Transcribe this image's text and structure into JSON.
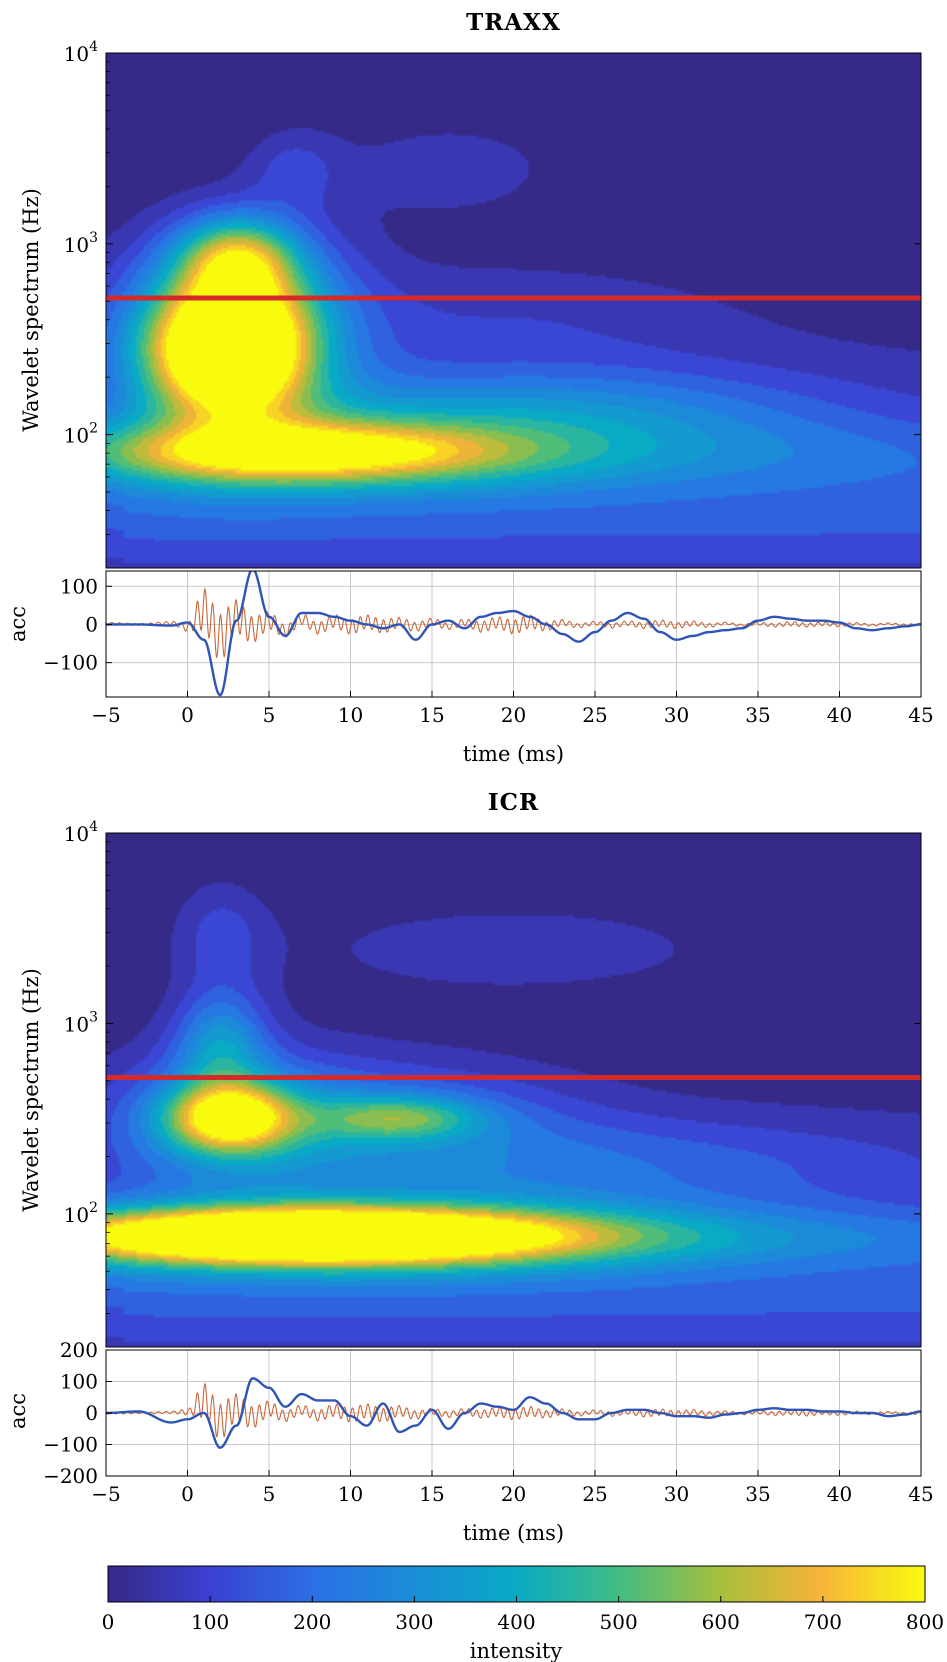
{
  "chart_data": [
    {
      "type": "heatmap",
      "title": "TRAXX",
      "ylabel": "Wavelet spectrum (Hz)",
      "yscale": "log",
      "ylim": [
        20,
        10000
      ],
      "xlim": [
        -5,
        45
      ],
      "ytick_labels": [
        {
          "base": "10",
          "exp": "2",
          "value": 100
        },
        {
          "base": "10",
          "exp": "3",
          "value": 1000
        },
        {
          "base": "10",
          "exp": "4",
          "value": 10000
        }
      ],
      "reference_line_hz": 520,
      "reference_line_color": "#d42a2a",
      "colormap": "parula",
      "blobs": [
        {
          "t": 2.5,
          "f": 280,
          "ts": 3.2,
          "fs": 0.22,
          "v": 820
        },
        {
          "t": 2.5,
          "f": 280,
          "ts": 5.0,
          "fs": 0.36,
          "v": 420
        },
        {
          "t": 3.0,
          "f": 850,
          "ts": 2.5,
          "fs": 0.15,
          "v": 460
        },
        {
          "t": 3.5,
          "f": 600,
          "ts": 4.0,
          "fs": 0.25,
          "v": 200
        },
        {
          "t": 7.0,
          "f": 80,
          "ts": 8.0,
          "fs": 0.1,
          "v": 420
        },
        {
          "t": 9.0,
          "f": 80,
          "ts": 12.0,
          "fs": 0.16,
          "v": 250
        },
        {
          "t": 20.0,
          "f": 80,
          "ts": 26.0,
          "fs": 0.15,
          "v": 170
        },
        {
          "t": 22.0,
          "f": 140,
          "ts": 12.0,
          "fs": 0.16,
          "v": 210
        },
        {
          "t": 6.5,
          "f": 2500,
          "ts": 2.0,
          "fs": 0.15,
          "v": 110
        },
        {
          "t": 16.0,
          "f": 2500,
          "ts": 6.0,
          "fs": 0.22,
          "v": 80
        },
        {
          "t": 20.0,
          "f": 420,
          "ts": 10.0,
          "fs": 0.22,
          "v": 80
        }
      ]
    },
    {
      "type": "line",
      "ylabel": "acc",
      "xlabel": "time (ms)",
      "xlim": [
        -5,
        45
      ],
      "ylim": [
        -190,
        140
      ],
      "x_ticks": [
        -5,
        0,
        5,
        10,
        15,
        20,
        25,
        30,
        35,
        40,
        45
      ],
      "y_ticks": [
        -100,
        0,
        100
      ],
      "grid": true,
      "series": [
        {
          "color": "#2e55b5",
          "x": [
            -5,
            -3,
            -1,
            0,
            1,
            2,
            3,
            4,
            5,
            6,
            7,
            8,
            9,
            10,
            11,
            12,
            13,
            14,
            15,
            16,
            17,
            18,
            19,
            20,
            21,
            22,
            23,
            24,
            25,
            26,
            27,
            28,
            29,
            30,
            31,
            32,
            33,
            34,
            35,
            36,
            37,
            38,
            39,
            40,
            41,
            42,
            43,
            44,
            45
          ],
          "y": [
            0,
            0,
            -3,
            5,
            -40,
            -185,
            10,
            145,
            20,
            -30,
            30,
            30,
            20,
            10,
            0,
            -10,
            0,
            -40,
            0,
            10,
            -10,
            20,
            30,
            35,
            20,
            0,
            -25,
            -45,
            -20,
            10,
            30,
            15,
            -20,
            -40,
            -30,
            -20,
            -15,
            -10,
            10,
            20,
            15,
            10,
            10,
            5,
            -10,
            -15,
            -10,
            -5,
            0
          ]
        },
        {
          "color": "#c8683a",
          "x": [
            -5,
            -3,
            -1,
            0,
            1,
            2,
            3,
            4,
            5,
            6,
            7,
            8,
            9,
            10,
            11,
            12,
            13,
            14,
            15,
            16,
            17,
            18,
            19,
            20,
            21,
            22,
            23,
            24,
            25,
            26,
            27,
            28,
            29,
            30,
            31,
            32,
            33,
            34,
            35,
            36,
            37,
            38,
            39,
            40,
            41,
            42,
            43,
            44,
            45
          ],
          "y": [
            5,
            0,
            10,
            -20,
            110,
            -100,
            60,
            -40,
            30,
            -50,
            40,
            -30,
            25,
            -20,
            20,
            -15,
            15,
            -20,
            20,
            -15,
            15,
            -20,
            15,
            -20,
            20,
            -15,
            15,
            -10,
            10,
            -10,
            10,
            -10,
            10,
            -8,
            8,
            -8,
            8,
            -6,
            6,
            -6,
            6,
            -5,
            5,
            -5,
            5,
            -5,
            5,
            -5,
            0
          ],
          "oscillation_amplitude": [
            5,
            4,
            8,
            15,
            60,
            60,
            45,
            40,
            35,
            30,
            28,
            25,
            22,
            20,
            18,
            18,
            16,
            18,
            18,
            16,
            15,
            18,
            16,
            18,
            18,
            14,
            12,
            10,
            10,
            10,
            8,
            8,
            8,
            8,
            8,
            8,
            6,
            6,
            6,
            6,
            6,
            5,
            5,
            5,
            5,
            5,
            5,
            5,
            4
          ]
        }
      ]
    },
    {
      "type": "heatmap",
      "title": "ICR",
      "ylabel": "Wavelet spectrum (Hz)",
      "yscale": "log",
      "ylim": [
        20,
        10000
      ],
      "xlim": [
        -5,
        45
      ],
      "ytick_labels": [
        {
          "base": "10",
          "exp": "2",
          "value": 100
        },
        {
          "base": "10",
          "exp": "3",
          "value": 1000
        },
        {
          "base": "10",
          "exp": "4",
          "value": 10000
        }
      ],
      "reference_line_hz": 520,
      "reference_line_color": "#d42a2a",
      "colormap": "parula",
      "blobs": [
        {
          "t": 7.0,
          "f": 76,
          "ts": 10.0,
          "fs": 0.09,
          "v": 840
        },
        {
          "t": 10.0,
          "f": 76,
          "ts": 14.0,
          "fs": 0.15,
          "v": 420
        },
        {
          "t": 22.0,
          "f": 76,
          "ts": 30.0,
          "fs": 0.12,
          "v": 170
        },
        {
          "t": 2.5,
          "f": 320,
          "ts": 2.6,
          "fs": 0.12,
          "v": 620
        },
        {
          "t": 2.5,
          "f": 320,
          "ts": 5.0,
          "fs": 0.26,
          "v": 250
        },
        {
          "t": 13.0,
          "f": 320,
          "ts": 3.5,
          "fs": 0.08,
          "v": 320
        },
        {
          "t": 12.0,
          "f": 320,
          "ts": 8.0,
          "fs": 0.22,
          "v": 200
        },
        {
          "t": 2.0,
          "f": 800,
          "ts": 2.0,
          "fs": 0.2,
          "v": 300
        },
        {
          "t": 25.0,
          "f": 180,
          "ts": 14.0,
          "fs": 0.18,
          "v": 150
        },
        {
          "t": 2.0,
          "f": 3000,
          "ts": 2.0,
          "fs": 0.2,
          "v": 120
        },
        {
          "t": 20.0,
          "f": 2500,
          "ts": 12.0,
          "fs": 0.22,
          "v": 80
        }
      ]
    },
    {
      "type": "line",
      "ylabel": "acc",
      "xlabel": "time (ms)",
      "xlim": [
        -5,
        45
      ],
      "ylim": [
        -200,
        200
      ],
      "x_ticks": [
        -5,
        0,
        5,
        10,
        15,
        20,
        25,
        30,
        35,
        40,
        45
      ],
      "y_ticks": [
        -200,
        -100,
        0,
        100,
        200
      ],
      "grid": true,
      "series": [
        {
          "color": "#2e55b5",
          "x": [
            -5,
            -3,
            -1,
            0,
            1,
            2,
            3,
            4,
            5,
            6,
            7,
            8,
            9,
            10,
            11,
            12,
            13,
            14,
            15,
            16,
            17,
            18,
            19,
            20,
            21,
            22,
            23,
            24,
            25,
            26,
            27,
            28,
            29,
            30,
            31,
            32,
            33,
            34,
            35,
            36,
            37,
            38,
            39,
            40,
            41,
            42,
            43,
            44,
            45
          ],
          "y": [
            0,
            5,
            -30,
            -20,
            0,
            -110,
            -40,
            110,
            80,
            20,
            60,
            40,
            40,
            -10,
            -40,
            30,
            -60,
            -40,
            10,
            -50,
            0,
            30,
            20,
            10,
            50,
            30,
            0,
            -20,
            -20,
            0,
            10,
            10,
            0,
            -10,
            -10,
            -15,
            -5,
            0,
            10,
            15,
            10,
            10,
            5,
            5,
            0,
            0,
            -10,
            -5,
            5
          ]
        },
        {
          "color": "#c8683a",
          "x": [
            -5,
            -3,
            -1,
            0,
            1,
            2,
            3,
            4,
            5,
            6,
            7,
            8,
            9,
            10,
            11,
            12,
            13,
            14,
            15,
            16,
            17,
            18,
            19,
            20,
            21,
            22,
            23,
            24,
            25,
            26,
            27,
            28,
            29,
            30,
            31,
            32,
            33,
            34,
            35,
            36,
            37,
            38,
            39,
            40,
            41,
            42,
            43,
            44,
            45
          ],
          "y": [
            0,
            0,
            5,
            10,
            110,
            -80,
            50,
            -40,
            40,
            -30,
            30,
            -25,
            25,
            -20,
            20,
            -20,
            20,
            -20,
            15,
            -15,
            15,
            -12,
            12,
            -15,
            15,
            -12,
            12,
            -10,
            10,
            -10,
            10,
            -10,
            8,
            -8,
            8,
            -8,
            8,
            -6,
            6,
            -6,
            6,
            -5,
            5,
            -5,
            5,
            -5,
            5,
            -5,
            0
          ],
          "oscillation_amplitude": [
            4,
            4,
            6,
            12,
            60,
            55,
            45,
            40,
            36,
            32,
            30,
            28,
            26,
            24,
            22,
            22,
            20,
            20,
            18,
            18,
            16,
            16,
            16,
            16,
            16,
            14,
            14,
            12,
            12,
            12,
            10,
            10,
            10,
            10,
            10,
            10,
            8,
            8,
            8,
            8,
            8,
            8,
            7,
            7,
            7,
            7,
            6,
            6,
            5
          ]
        }
      ]
    }
  ],
  "colorbar": {
    "label": "intensity",
    "ticks": [
      0,
      100,
      200,
      300,
      400,
      500,
      600,
      700,
      800
    ],
    "range": [
      0,
      800
    ],
    "colormap": "parula"
  }
}
